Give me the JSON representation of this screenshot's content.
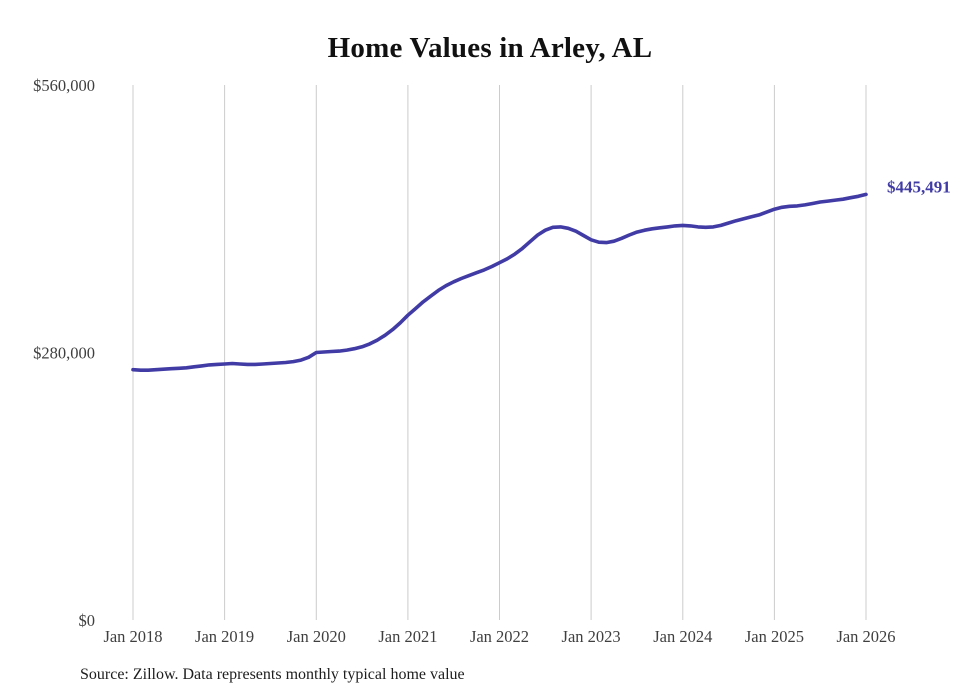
{
  "title": "Home Values in Arley, AL",
  "source_note": "Source: Zillow. Data represents monthly typical home value",
  "colors": {
    "line": "#413ca5",
    "grid": "#cccccc",
    "axis_text": "#3f3f3f",
    "title_text": "#111111"
  },
  "chart_data": {
    "type": "line",
    "title": "Home Values in Arley, AL",
    "xlabel": "",
    "ylabel": "",
    "ylim": [
      0,
      560000
    ],
    "grid": "vertical-only",
    "legend_position": "none",
    "x_tick_labels": [
      "Jan 2018",
      "Jan 2019",
      "Jan 2020",
      "Jan 2021",
      "Jan 2022",
      "Jan 2023",
      "Jan 2024",
      "Jan 2025",
      "Jan 2026"
    ],
    "x_tick_indices": [
      0,
      12,
      24,
      36,
      48,
      60,
      72,
      84,
      96
    ],
    "y_ticks": [
      {
        "value": 0,
        "label": "$0"
      },
      {
        "value": 280000,
        "label": "$280,000"
      },
      {
        "value": 560000,
        "label": "$560,000"
      }
    ],
    "final_value": 445491,
    "final_value_label": "$445,491",
    "series": [
      {
        "name": "Monthly typical home value",
        "values": [
          262000,
          261500,
          261500,
          262000,
          262500,
          263000,
          263500,
          264000,
          265000,
          266000,
          267000,
          267500,
          268000,
          268500,
          268000,
          267500,
          267500,
          268000,
          268500,
          269000,
          269500,
          270500,
          272000,
          275000,
          280000,
          280500,
          281000,
          281500,
          282500,
          284000,
          286000,
          289000,
          293000,
          298000,
          304000,
          311000,
          319000,
          326000,
          333000,
          339000,
          345000,
          350000,
          354000,
          357500,
          360500,
          363500,
          366500,
          370000,
          374000,
          378000,
          383000,
          389000,
          396000,
          403000,
          408000,
          411000,
          411500,
          410000,
          407000,
          402500,
          398000,
          395500,
          395000,
          396500,
          399500,
          403000,
          406000,
          408000,
          409500,
          410500,
          411500,
          412500,
          413000,
          412500,
          411500,
          411000,
          411500,
          413000,
          415500,
          418000,
          420000,
          422000,
          424000,
          427000,
          430000,
          432000,
          433000,
          433500,
          434500,
          436000,
          437500,
          438500,
          439500,
          440500,
          442000,
          443500,
          445491
        ]
      }
    ]
  }
}
